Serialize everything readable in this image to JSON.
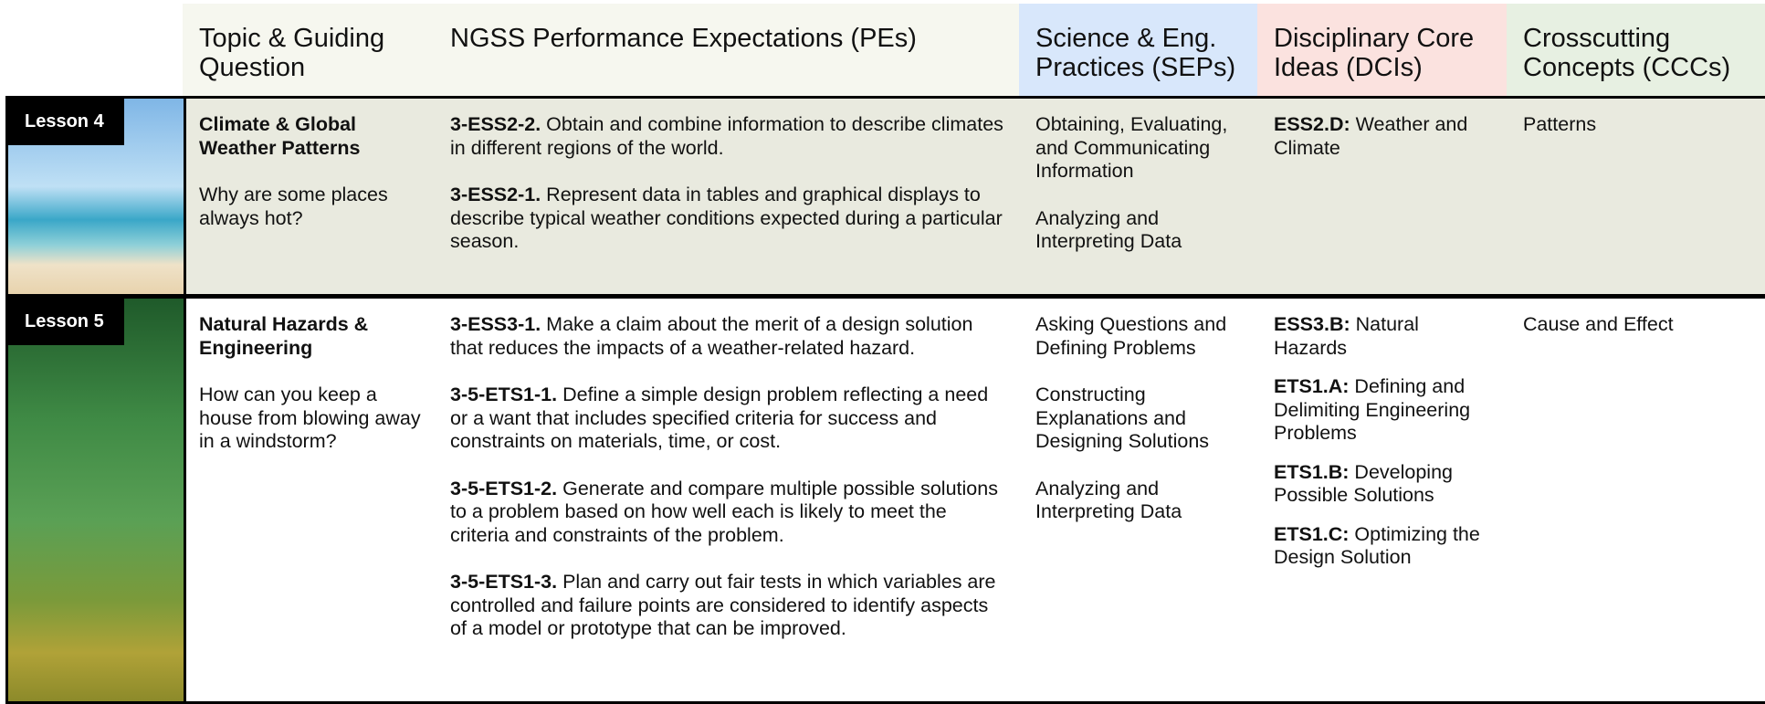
{
  "header": {
    "columns": [
      "Topic & Guiding Question",
      "NGSS Performance Expectations (PEs)",
      "Science & Eng. Practices (SEPs)",
      "Disciplinary Core Ideas (DCIs)",
      "Crosscutting Concepts (CCCs)"
    ]
  },
  "lessons": [
    {
      "label": "Lesson 4",
      "topic": "Climate & Global Weather Patterns",
      "question": "Why are some places always hot?",
      "pes": [
        {
          "code": "3-ESS2-2.",
          "text": "Obtain and combine information to describe climates in different regions of the world."
        },
        {
          "code": "3-ESS2-1.",
          "text": "Represent data in tables and graphical displays to describe typical weather conditions expected during a particular season."
        }
      ],
      "seps": [
        "Obtaining, Evaluating, and Communicating Information",
        "Analyzing and Interpreting Data"
      ],
      "dcis": [
        {
          "code": "ESS2.D:",
          "text": "Weather and Climate"
        }
      ],
      "cccs": [
        "Patterns"
      ]
    },
    {
      "label": "Lesson 5",
      "topic": "Natural Hazards & Engineering",
      "question": "How can you keep a house from blowing away in a windstorm?",
      "pes": [
        {
          "code": "3-ESS3-1.",
          "text": "Make a claim about the merit of a design solution that reduces the impacts of a weather-related hazard."
        },
        {
          "code": "3-5-ETS1-1.",
          "text": "Define a simple design problem reflecting a need or a want that includes specified criteria for success and constraints on materials, time, or cost."
        },
        {
          "code": "3-5-ETS1-2.",
          "text": "Generate and compare multiple possible solutions to a problem based on how well each is likely to meet the criteria and constraints of the problem."
        },
        {
          "code": "3-5-ETS1-3.",
          "text": "Plan and carry out fair tests in which variables are controlled and failure points are considered to identify aspects of a model or prototype that can be improved."
        }
      ],
      "seps": [
        "Asking Questions and Defining Problems",
        "Constructing Explanations and Designing Solutions",
        "Analyzing and Interpreting Data"
      ],
      "dcis": [
        {
          "code": "ESS3.B:",
          "text": "Natural Hazards"
        },
        {
          "code": "ETS1.A:",
          "text": "Defining and Delimiting Engineering Problems"
        },
        {
          "code": "ETS1.B:",
          "text": "Developing Possible Solutions"
        },
        {
          "code": "ETS1.C:",
          "text": "Optimizing the Design Solution"
        }
      ],
      "cccs": [
        "Cause and Effect"
      ]
    }
  ]
}
